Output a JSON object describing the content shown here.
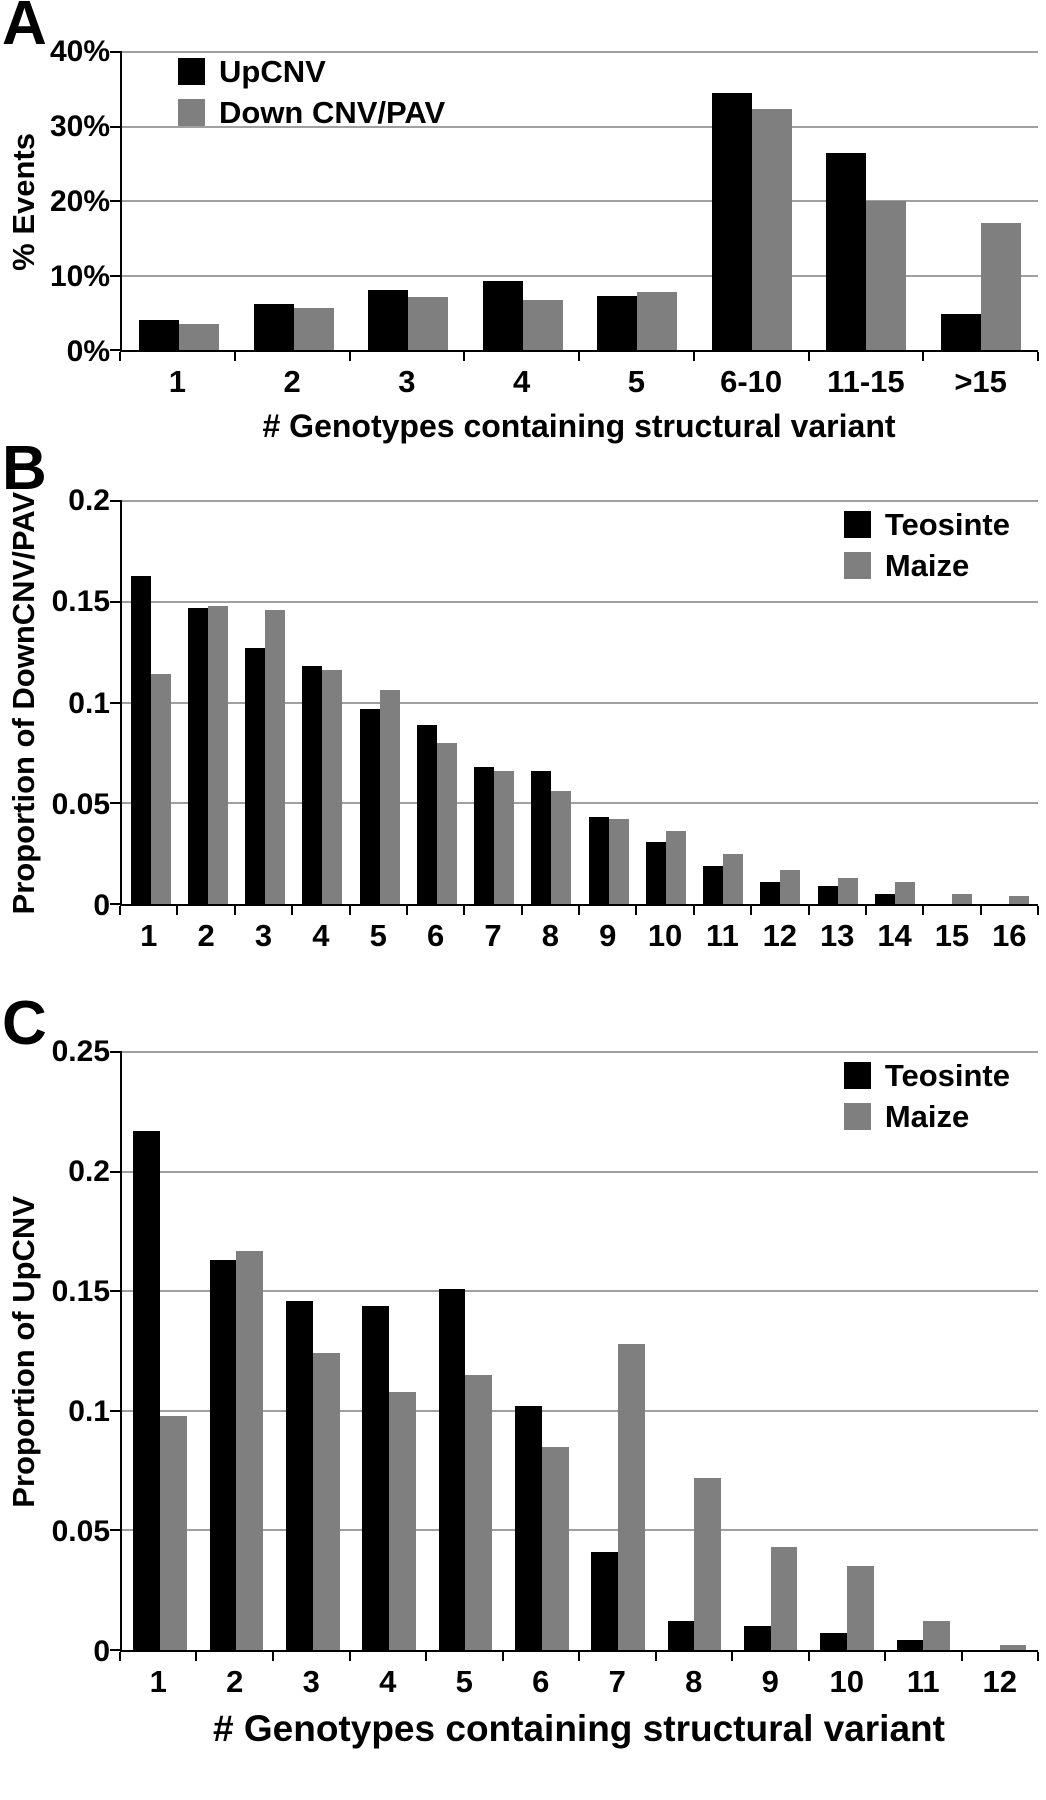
{
  "chart_data": [
    {
      "panel_label": "A",
      "type": "bar",
      "title": "",
      "xlabel": "# Genotypes containing structural variant",
      "ylabel": "% Events",
      "ymax": 40,
      "ylim": [
        0,
        40
      ],
      "yticks": [
        0,
        10,
        20,
        30,
        40
      ],
      "ytick_labels": [
        "0%",
        "10%",
        "20%",
        "30%",
        "40%"
      ],
      "categories": [
        "1",
        "2",
        "3",
        "4",
        "5",
        "6-10",
        "11-15",
        ">15"
      ],
      "grid": true,
      "legend_position": "top-left",
      "series": [
        {
          "name": "UpCNV",
          "color": "#000000",
          "values": [
            4.0,
            6.2,
            8.0,
            9.2,
            7.2,
            34.5,
            26.5,
            4.8
          ]
        },
        {
          "name": "Down CNV/PAV",
          "color": "#7f7f7f",
          "values": [
            3.5,
            5.6,
            7.1,
            6.7,
            7.8,
            32.3,
            20.0,
            17.0
          ]
        }
      ]
    },
    {
      "panel_label": "B",
      "type": "bar",
      "title": "",
      "xlabel": "",
      "ylabel": "Proportion of DownCNV/PAV",
      "ymax": 0.2,
      "ylim": [
        0,
        0.2
      ],
      "yticks": [
        0,
        0.05,
        0.1,
        0.15,
        0.2
      ],
      "ytick_labels": [
        "0",
        "0.05",
        "0.1",
        "0.15",
        "0.2"
      ],
      "categories": [
        "1",
        "2",
        "3",
        "4",
        "5",
        "6",
        "7",
        "8",
        "9",
        "10",
        "11",
        "12",
        "13",
        "14",
        "15",
        "16"
      ],
      "grid": true,
      "legend_position": "top-right",
      "series": [
        {
          "name": "Teosinte",
          "color": "#000000",
          "values": [
            0.163,
            0.147,
            0.127,
            0.118,
            0.097,
            0.089,
            0.068,
            0.066,
            0.043,
            0.031,
            0.019,
            0.011,
            0.009,
            0.005,
            0,
            0
          ]
        },
        {
          "name": "Maize",
          "color": "#7f7f7f",
          "values": [
            0.114,
            0.148,
            0.146,
            0.116,
            0.106,
            0.08,
            0.066,
            0.056,
            0.042,
            0.036,
            0.025,
            0.017,
            0.013,
            0.011,
            0.005,
            0.004
          ]
        }
      ]
    },
    {
      "panel_label": "C",
      "type": "bar",
      "title": "",
      "xlabel": "# Genotypes containing structural variant",
      "ylabel": "Proportion of UpCNV",
      "ymax": 0.25,
      "ylim": [
        0,
        0.25
      ],
      "yticks": [
        0,
        0.05,
        0.1,
        0.15,
        0.2,
        0.25
      ],
      "ytick_labels": [
        "0",
        "0.05",
        "0.1",
        "0.15",
        "0.2",
        "0.25"
      ],
      "categories": [
        "1",
        "2",
        "3",
        "4",
        "5",
        "6",
        "7",
        "8",
        "9",
        "10",
        "11",
        "12"
      ],
      "grid": true,
      "legend_position": "top-right",
      "series": [
        {
          "name": "Teosinte",
          "color": "#000000",
          "values": [
            0.217,
            0.163,
            0.146,
            0.144,
            0.151,
            0.102,
            0.041,
            0.012,
            0.01,
            0.007,
            0.004,
            0
          ]
        },
        {
          "name": "Maize",
          "color": "#7f7f7f",
          "values": [
            0.098,
            0.167,
            0.124,
            0.108,
            0.115,
            0.085,
            0.128,
            0.072,
            0.043,
            0.035,
            0.012,
            0.002
          ]
        }
      ]
    }
  ]
}
